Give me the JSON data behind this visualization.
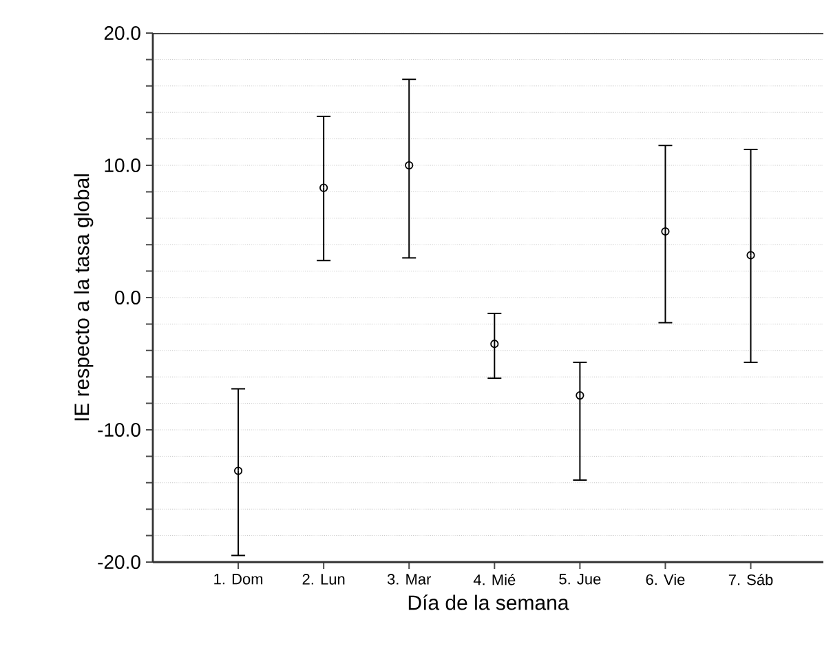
{
  "chart_data": {
    "type": "scatter",
    "xlabel": "Día de la semana",
    "ylabel": "IE respecto a la tasa global",
    "categories": [
      "1. Dom",
      "2. Lun",
      "3. Mar",
      "4. Mié",
      "5. Jue",
      "6. Vie",
      "7. Sáb"
    ],
    "series": [
      {
        "color": "#000000",
        "values": [
          -13.1,
          8.3,
          10.0,
          -3.5,
          -7.4,
          5.0,
          3.2
        ],
        "errors": [
          [
            -19.5,
            -6.9
          ],
          [
            2.8,
            13.7
          ],
          [
            3.0,
            16.5
          ],
          [
            -6.1,
            -1.2
          ],
          [
            -13.8,
            -4.9
          ],
          [
            -1.9,
            11.5
          ],
          [
            -4.9,
            11.2
          ]
        ]
      }
    ],
    "ylim": [
      -20,
      20
    ],
    "yticks": [
      {
        "value": -20,
        "label": "-20.0"
      },
      {
        "value": -18,
        "label": null
      },
      {
        "value": -16,
        "label": null
      },
      {
        "value": -14,
        "label": null
      },
      {
        "value": -12,
        "label": null
      },
      {
        "value": -10,
        "label": "-10.0"
      },
      {
        "value": -8,
        "label": null
      },
      {
        "value": -6,
        "label": null
      },
      {
        "value": -4,
        "label": null
      },
      {
        "value": -2,
        "label": null
      },
      {
        "value": 0,
        "label": "0.0"
      },
      {
        "value": 2,
        "label": null
      },
      {
        "value": 4,
        "label": null
      },
      {
        "value": 6,
        "label": null
      },
      {
        "value": 8,
        "label": null
      },
      {
        "value": 10,
        "label": "10.0"
      },
      {
        "value": 12,
        "label": null
      },
      {
        "value": 14,
        "label": null
      },
      {
        "value": 16,
        "label": null
      },
      {
        "value": 18,
        "label": null
      },
      {
        "value": 20,
        "label": "20.0"
      }
    ],
    "grid": "y",
    "marker": "circle"
  }
}
